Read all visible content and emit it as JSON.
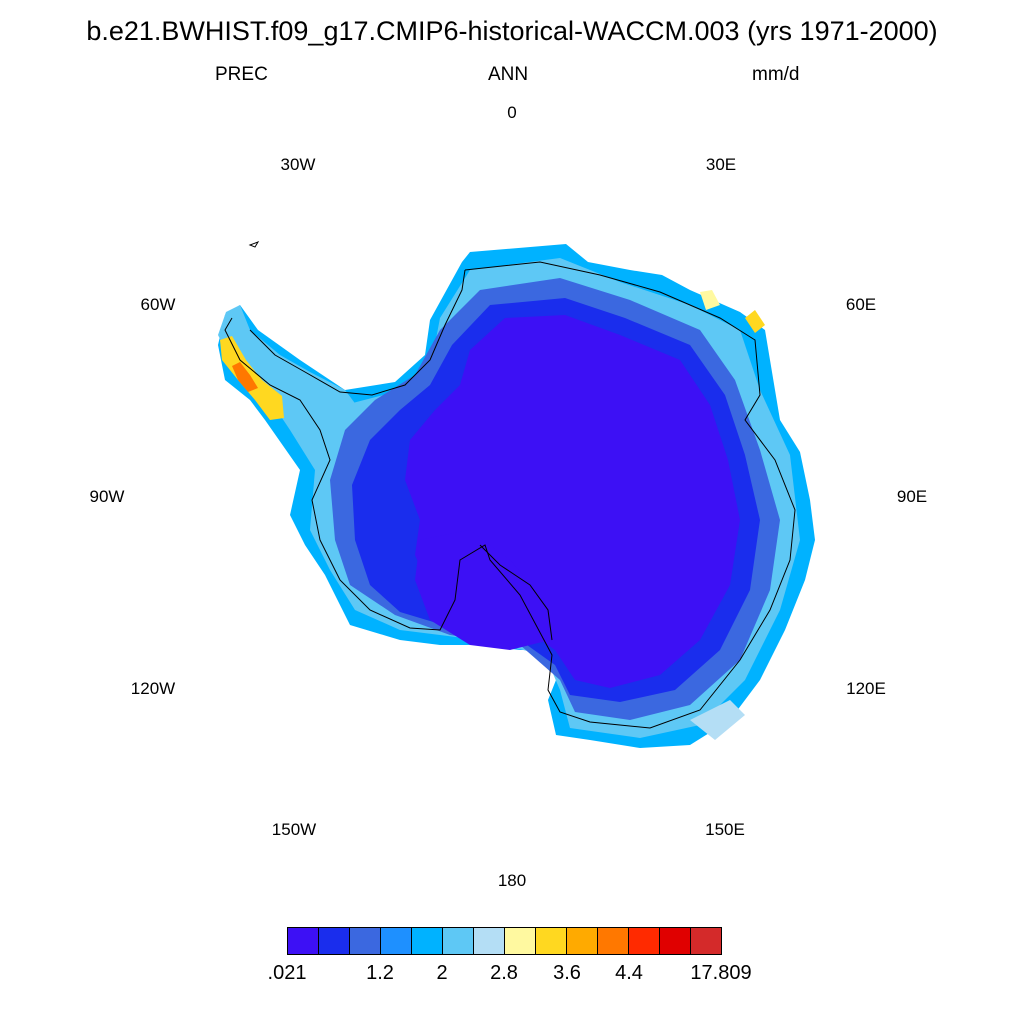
{
  "title": "b.e21.BWHIST.f09_g17.CMIP6-historical-WACCM.003 (yrs 1971-2000)",
  "subtitle": {
    "left": "PREC",
    "center": "ANN",
    "right": "mm/d"
  },
  "longitude_labels": [
    "0",
    "30E",
    "60E",
    "90E",
    "120E",
    "150E",
    "180",
    "150W",
    "120W",
    "90W",
    "60W",
    "30W"
  ],
  "colorbar": {
    "colors": [
      "#3d10f5",
      "#1a2ded",
      "#3b68e0",
      "#1e90ff",
      "#00b2ff",
      "#5ec8f5",
      "#b4def5",
      "#fff9a0",
      "#ffd820",
      "#ffaa00",
      "#ff7800",
      "#ff2a00",
      "#e00000",
      "#d42a2a"
    ],
    "labels": [
      ".021",
      "1.2",
      "2",
      "2.8",
      "3.6",
      "4.4",
      "17.809"
    ]
  },
  "map": {
    "projection": "south-polar-stereographic",
    "variable": "PREC",
    "region": "Antarctica"
  }
}
